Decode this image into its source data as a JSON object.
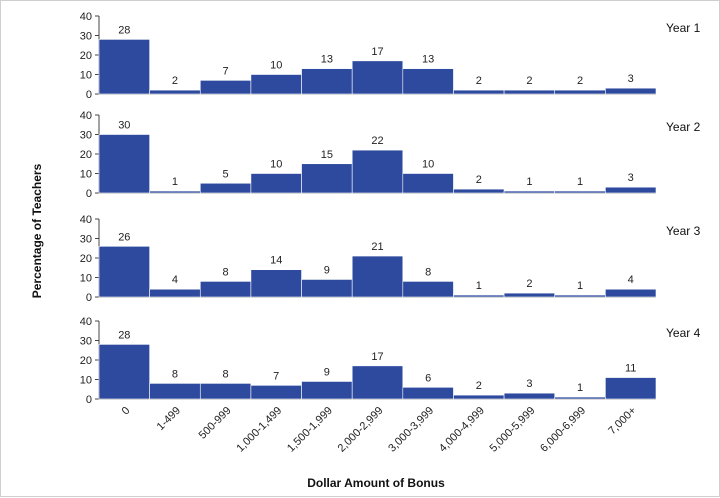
{
  "chart_data": {
    "type": "bar",
    "xlabel": "Dollar Amount of Bonus",
    "ylabel": "Percentage of Teachers",
    "ylim": [
      0,
      40
    ],
    "yticks": [
      "0",
      "10",
      "20",
      "30",
      "40"
    ],
    "categories": [
      "0",
      "1-499",
      "500-999",
      "1,000-1,499",
      "1,500-1,999",
      "2,000-2,999",
      "3,000-3,999",
      "4,000-4,999",
      "5,000-5,999",
      "6,000-6,999",
      "7,000+"
    ],
    "bar_color": "#2e4a9e",
    "grid": false,
    "panels": [
      {
        "name": "Year 1",
        "values": [
          28,
          2,
          7,
          10,
          13,
          17,
          13,
          2,
          2,
          2,
          3
        ]
      },
      {
        "name": "Year 2",
        "values": [
          30,
          1,
          5,
          10,
          15,
          22,
          10,
          2,
          1,
          1,
          3
        ]
      },
      {
        "name": "Year 3",
        "values": [
          26,
          4,
          8,
          14,
          9,
          21,
          8,
          1,
          2,
          1,
          4
        ]
      },
      {
        "name": "Year 4",
        "values": [
          28,
          8,
          8,
          7,
          9,
          17,
          6,
          2,
          3,
          1,
          11
        ]
      }
    ]
  }
}
